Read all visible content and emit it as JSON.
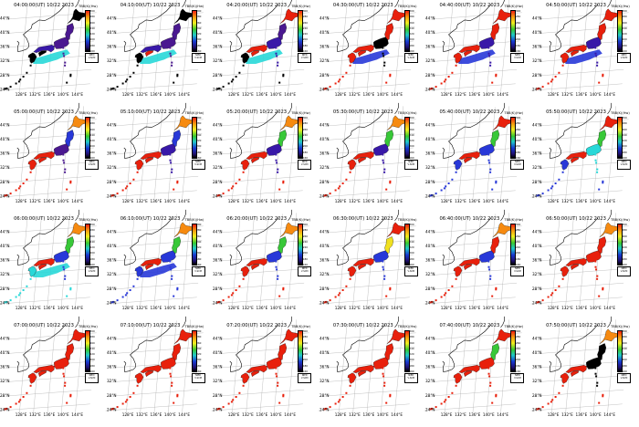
{
  "colorbar": {
    "title": "TBB(K)(Hw)",
    "ticks": [
      "300",
      "280",
      "260",
      "240",
      "220",
      "200",
      "180",
      "160"
    ]
  },
  "legend": {
    "line1": "NIED",
    "line2": "V-SCM"
  },
  "lat_labels": [
    "44°N",
    "40°N",
    "36°N",
    "32°N",
    "28°N",
    "24°N"
  ],
  "lon_labels": [
    "128°E",
    "132°E",
    "136°E",
    "140°E",
    "144°E"
  ],
  "colors": {
    "red": "#e8200c",
    "orange": "#f68a10",
    "yellow": "#f0e020",
    "green": "#38c838",
    "cyan": "#28d8d8",
    "blue": "#2838d8",
    "indigo": "#3818a8",
    "purple": "#4a1890",
    "black": "#000000",
    "ocean": "#ffffff",
    "coast": "#000000"
  },
  "panels": [
    {
      "title": "04:00:00(UT) 10/22 2023",
      "colors": [
        "black",
        "purple",
        "purple",
        "indigo",
        "black",
        "black"
      ],
      "sea": "cyan"
    },
    {
      "title": "04:10:00(UT) 10/22 2023",
      "colors": [
        "black",
        "purple",
        "purple",
        "indigo",
        "red",
        "black"
      ],
      "sea": "cyan"
    },
    {
      "title": "04:20:00(UT) 10/22 2023",
      "colors": [
        "red",
        "purple",
        "indigo",
        "red",
        "red",
        "black"
      ],
      "sea": "cyan"
    },
    {
      "title": "04:30:00(UT) 10/22 2023",
      "colors": [
        "red",
        "red",
        "black",
        "red",
        "red",
        "red"
      ],
      "sea": "blue"
    },
    {
      "title": "04:40:00(UT) 10/22 2023",
      "colors": [
        "red",
        "red",
        "indigo",
        "red",
        "red",
        "red"
      ],
      "sea": "blue"
    },
    {
      "title": "04:50:00(UT) 10/22 2023",
      "colors": [
        "red",
        "red",
        "indigo",
        "red",
        "red",
        "red"
      ],
      "sea": "blue"
    },
    {
      "title": "05:00:00(UT) 10/22 2023",
      "colors": [
        "orange",
        "blue",
        "purple",
        "red",
        "red",
        "red"
      ],
      "sea": "none"
    },
    {
      "title": "05:10:00(UT) 10/22 2023",
      "colors": [
        "orange",
        "blue",
        "indigo",
        "red",
        "red",
        "red"
      ],
      "sea": "none"
    },
    {
      "title": "05:20:00(UT) 10/22 2023",
      "colors": [
        "orange",
        "green",
        "indigo",
        "red",
        "red",
        "red"
      ],
      "sea": "none"
    },
    {
      "title": "05:30:00(UT) 10/22 2023",
      "colors": [
        "orange",
        "green",
        "indigo",
        "red",
        "red",
        "red"
      ],
      "sea": "none"
    },
    {
      "title": "05:40:00(UT) 10/22 2023",
      "colors": [
        "red",
        "green",
        "blue",
        "red",
        "red",
        "blue"
      ],
      "sea": "none"
    },
    {
      "title": "05:50:00(UT) 10/22 2023",
      "colors": [
        "red",
        "green",
        "cyan",
        "red",
        "red",
        "blue"
      ],
      "sea": "none"
    },
    {
      "title": "06:00:00(UT) 10/22 2023",
      "colors": [
        "orange",
        "green",
        "blue",
        "red",
        "red",
        "cyan"
      ],
      "sea": "cyan"
    },
    {
      "title": "06:10:00(UT) 10/22 2023",
      "colors": [
        "orange",
        "green",
        "blue",
        "red",
        "red",
        "blue"
      ],
      "sea": "blue"
    },
    {
      "title": "06:20:00(UT) 10/22 2023",
      "colors": [
        "orange",
        "green",
        "blue",
        "red",
        "red",
        "red"
      ],
      "sea": "none"
    },
    {
      "title": "06:30:00(UT) 10/22 2023",
      "colors": [
        "red",
        "yellow",
        "blue",
        "red",
        "red",
        "red"
      ],
      "sea": "none"
    },
    {
      "title": "06:40:00(UT) 10/22 2023",
      "colors": [
        "orange",
        "red",
        "blue",
        "red",
        "red",
        "red"
      ],
      "sea": "none"
    },
    {
      "title": "06:50:00(UT) 10/22 2023",
      "colors": [
        "orange",
        "red",
        "red",
        "red",
        "red",
        "red"
      ],
      "sea": "none"
    },
    {
      "title": "07:00:00(UT) 10/22 2023",
      "colors": [
        "red",
        "red",
        "red",
        "red",
        "red",
        "red"
      ],
      "sea": "none"
    },
    {
      "title": "07:10:00(UT) 10/22 2023",
      "colors": [
        "red",
        "red",
        "red",
        "red",
        "red",
        "red"
      ],
      "sea": "none"
    },
    {
      "title": "07:20:00(UT) 10/22 2023",
      "colors": [
        "red",
        "red",
        "red",
        "red",
        "red",
        "red"
      ],
      "sea": "none"
    },
    {
      "title": "07:30:00(UT) 10/22 2023",
      "colors": [
        "red",
        "red",
        "red",
        "red",
        "red",
        "red"
      ],
      "sea": "none"
    },
    {
      "title": "07:40:00(UT) 10/22 2023",
      "colors": [
        "red",
        "green",
        "red",
        "red",
        "red",
        "red"
      ],
      "sea": "none"
    },
    {
      "title": "07:50:00(UT) 10/22 2023",
      "colors": [
        "orange",
        "black",
        "black",
        "red",
        "red",
        "red"
      ],
      "sea": "none"
    }
  ]
}
